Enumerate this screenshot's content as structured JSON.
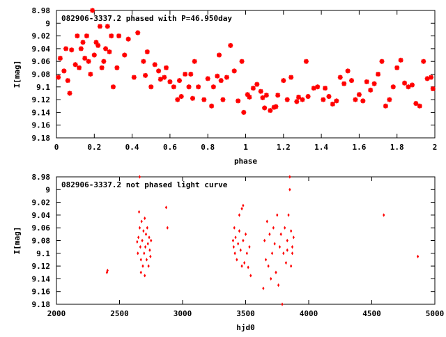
{
  "chart_data": [
    {
      "type": "scatter",
      "title": "082906-3337.2 phased with P=46.950day",
      "xlabel": "phase",
      "ylabel": "I[mag]",
      "xlim": [
        0,
        2
      ],
      "ylim": [
        9.18,
        8.98
      ],
      "y_inverted": true,
      "grid": false,
      "x_ticks": [
        "0",
        "0.2",
        "0.4",
        "0.6",
        "0.8",
        "1",
        "1.2",
        "1.4",
        "1.6",
        "1.8",
        "2"
      ],
      "y_ticks": [
        "8.98",
        "9",
        "9.02",
        "9.04",
        "9.06",
        "9.08",
        "9.1",
        "9.12",
        "9.14",
        "9.16",
        "9.18"
      ],
      "marker_color": "#ff0000",
      "points": [
        [
          0.01,
          9.085
        ],
        [
          0.02,
          9.055
        ],
        [
          0.04,
          9.075
        ],
        [
          0.05,
          9.04
        ],
        [
          0.06,
          9.09
        ],
        [
          0.07,
          9.11
        ],
        [
          0.08,
          9.042
        ],
        [
          0.1,
          9.065
        ],
        [
          0.11,
          9.02
        ],
        [
          0.12,
          9.07
        ],
        [
          0.13,
          9.04
        ],
        [
          0.14,
          9.03
        ],
        [
          0.15,
          9.055
        ],
        [
          0.16,
          9.02
        ],
        [
          0.17,
          9.06
        ],
        [
          0.18,
          9.08
        ],
        [
          0.19,
          8.98
        ],
        [
          0.2,
          9.05
        ],
        [
          0.21,
          9.03
        ],
        [
          0.22,
          9.035
        ],
        [
          0.23,
          9.005
        ],
        [
          0.24,
          9.07
        ],
        [
          0.25,
          9.06
        ],
        [
          0.26,
          9.04
        ],
        [
          0.27,
          9.005
        ],
        [
          0.28,
          9.045
        ],
        [
          0.29,
          9.02
        ],
        [
          0.3,
          9.1
        ],
        [
          0.32,
          9.07
        ],
        [
          0.33,
          9.02
        ],
        [
          0.36,
          9.05
        ],
        [
          0.38,
          9.025
        ],
        [
          0.41,
          9.085
        ],
        [
          0.43,
          9.015
        ],
        [
          0.46,
          9.06
        ],
        [
          0.47,
          9.082
        ],
        [
          0.48,
          9.045
        ],
        [
          0.5,
          9.1
        ],
        [
          0.52,
          9.065
        ],
        [
          0.54,
          9.075
        ],
        [
          0.55,
          9.088
        ],
        [
          0.57,
          9.085
        ],
        [
          0.58,
          9.07
        ],
        [
          0.6,
          9.092
        ],
        [
          0.62,
          9.1
        ],
        [
          0.64,
          9.12
        ],
        [
          0.65,
          9.09
        ],
        [
          0.66,
          9.115
        ],
        [
          0.68,
          9.08
        ],
        [
          0.7,
          9.1
        ],
        [
          0.71,
          9.08
        ],
        [
          0.72,
          9.118
        ],
        [
          0.73,
          9.06
        ],
        [
          0.75,
          9.1
        ],
        [
          0.78,
          9.12
        ],
        [
          0.8,
          9.087
        ],
        [
          0.82,
          9.13
        ],
        [
          0.83,
          9.1
        ],
        [
          0.85,
          9.083
        ],
        [
          0.86,
          9.05
        ],
        [
          0.87,
          9.09
        ],
        [
          0.88,
          9.12
        ],
        [
          0.9,
          9.085
        ],
        [
          0.92,
          9.035
        ],
        [
          0.94,
          9.075
        ],
        [
          0.96,
          9.122
        ],
        [
          0.98,
          9.06
        ],
        [
          0.99,
          9.14
        ],
        [
          1.01,
          9.112
        ],
        [
          1.02,
          9.116
        ],
        [
          1.04,
          9.102
        ],
        [
          1.06,
          9.096
        ],
        [
          1.08,
          9.107
        ],
        [
          1.09,
          9.117
        ],
        [
          1.1,
          9.133
        ],
        [
          1.11,
          9.113
        ],
        [
          1.13,
          9.137
        ],
        [
          1.15,
          9.132
        ],
        [
          1.16,
          9.131
        ],
        [
          1.17,
          9.113
        ],
        [
          1.2,
          9.09
        ],
        [
          1.22,
          9.12
        ],
        [
          1.24,
          9.085
        ],
        [
          1.27,
          9.123
        ],
        [
          1.28,
          9.116
        ],
        [
          1.3,
          9.12
        ],
        [
          1.32,
          9.06
        ],
        [
          1.33,
          9.115
        ],
        [
          1.36,
          9.102
        ],
        [
          1.38,
          9.1
        ],
        [
          1.41,
          9.12
        ],
        [
          1.42,
          9.102
        ],
        [
          1.44,
          9.115
        ],
        [
          1.46,
          9.127
        ],
        [
          1.48,
          9.122
        ],
        [
          1.5,
          9.085
        ],
        [
          1.52,
          9.095
        ],
        [
          1.54,
          9.075
        ],
        [
          1.56,
          9.09
        ],
        [
          1.58,
          9.12
        ],
        [
          1.6,
          9.112
        ],
        [
          1.62,
          9.122
        ],
        [
          1.64,
          9.092
        ],
        [
          1.66,
          9.105
        ],
        [
          1.68,
          9.095
        ],
        [
          1.7,
          9.08
        ],
        [
          1.72,
          9.06
        ],
        [
          1.74,
          9.13
        ],
        [
          1.76,
          9.12
        ],
        [
          1.78,
          9.1
        ],
        [
          1.8,
          9.07
        ],
        [
          1.82,
          9.058
        ],
        [
          1.84,
          9.094
        ],
        [
          1.86,
          9.1
        ],
        [
          1.88,
          9.097
        ],
        [
          1.9,
          9.126
        ],
        [
          1.92,
          9.13
        ],
        [
          1.94,
          9.06
        ],
        [
          1.96,
          9.087
        ],
        [
          1.98,
          9.085
        ],
        [
          1.99,
          9.103
        ]
      ]
    },
    {
      "type": "scatter",
      "title": "082906-3337.2 not phased light curve",
      "xlabel": "hjd0",
      "ylabel": "I[mag]",
      "xlim": [
        2000,
        5000
      ],
      "ylim": [
        9.18,
        8.98
      ],
      "y_inverted": true,
      "grid": false,
      "x_ticks": [
        "2000",
        "2500",
        "3000",
        "3500",
        "4000",
        "4500",
        "5000"
      ],
      "y_ticks": [
        "8.98",
        "9",
        "9.02",
        "9.04",
        "9.06",
        "9.08",
        "9.1",
        "9.12",
        "9.14",
        "9.16",
        "9.18"
      ],
      "marker_color": "#ff0000",
      "points": [
        [
          2400,
          9.13
        ],
        [
          2405,
          9.127
        ],
        [
          2640,
          9.082
        ],
        [
          2645,
          9.1
        ],
        [
          2650,
          9.075
        ],
        [
          2655,
          9.035
        ],
        [
          2660,
          9.06
        ],
        [
          2665,
          9.09
        ],
        [
          2670,
          9.11
        ],
        [
          2675,
          9.05
        ],
        [
          2680,
          9.08
        ],
        [
          2685,
          9.12
        ],
        [
          2690,
          9.065
        ],
        [
          2695,
          9.1
        ],
        [
          2700,
          9.045
        ],
        [
          2705,
          9.09
        ],
        [
          2710,
          9.07
        ],
        [
          2715,
          9.11
        ],
        [
          2720,
          9.06
        ],
        [
          2725,
          9.085
        ],
        [
          2730,
          9.12
        ],
        [
          2735,
          9.075
        ],
        [
          2740,
          9.095
        ],
        [
          2745,
          9.105
        ],
        [
          2750,
          9.08
        ],
        [
          2660,
          8.98
        ],
        [
          2880,
          9.06
        ],
        [
          2870,
          9.028
        ],
        [
          2670,
          9.13
        ],
        [
          2700,
          9.135
        ],
        [
          3400,
          9.08
        ],
        [
          3405,
          9.09
        ],
        [
          3410,
          9.06
        ],
        [
          3415,
          9.1
        ],
        [
          3420,
          9.075
        ],
        [
          3430,
          9.11
        ],
        [
          3440,
          9.085
        ],
        [
          3450,
          9.065
        ],
        [
          3460,
          9.095
        ],
        [
          3470,
          9.03
        ],
        [
          3480,
          9.08
        ],
        [
          3490,
          9.115
        ],
        [
          3500,
          9.07
        ],
        [
          3510,
          9.1
        ],
        [
          3520,
          9.122
        ],
        [
          3530,
          9.09
        ],
        [
          3540,
          9.135
        ],
        [
          3480,
          9.025
        ],
        [
          3450,
          9.04
        ],
        [
          3470,
          9.12
        ],
        [
          3640,
          9.155
        ],
        [
          3650,
          9.08
        ],
        [
          3660,
          9.11
        ],
        [
          3670,
          9.05
        ],
        [
          3680,
          9.12
        ],
        [
          3690,
          9.07
        ],
        [
          3700,
          9.14
        ],
        [
          3710,
          9.1
        ],
        [
          3720,
          9.06
        ],
        [
          3730,
          9.085
        ],
        [
          3740,
          9.13
        ],
        [
          3750,
          9.04
        ],
        [
          3760,
          9.15
        ],
        [
          3770,
          9.09
        ],
        [
          3780,
          9.07
        ],
        [
          3790,
          9.18
        ],
        [
          3800,
          9.1
        ],
        [
          3810,
          9.06
        ],
        [
          3820,
          9.115
        ],
        [
          3830,
          9.08
        ],
        [
          3840,
          9.04
        ],
        [
          3850,
          8.98
        ],
        [
          3860,
          9.065
        ],
        [
          3870,
          9.09
        ],
        [
          3880,
          9.075
        ],
        [
          3850,
          9.0
        ],
        [
          3860,
          9.12
        ],
        [
          3870,
          9.1
        ],
        [
          3830,
          9.095
        ],
        [
          4595,
          9.04
        ],
        [
          4865,
          9.105
        ]
      ]
    }
  ]
}
